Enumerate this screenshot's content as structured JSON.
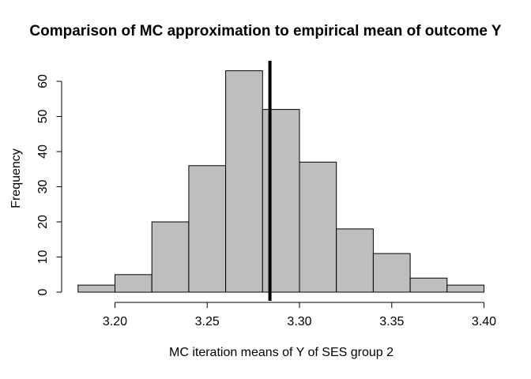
{
  "figure": {
    "background": "#FFFFFF",
    "text_color": "#000000"
  },
  "chart_data": {
    "type": "bar",
    "subtype": "histogram",
    "title": "Comparison of MC approximation to empirical mean of outcome Y",
    "xlabel": "MC iteration means of Y of SES group 2",
    "ylabel": "Frequency",
    "bin_edges": [
      3.18,
      3.2,
      3.22,
      3.24,
      3.26,
      3.28,
      3.3,
      3.32,
      3.34,
      3.36,
      3.38,
      3.4
    ],
    "counts": [
      2,
      5,
      20,
      36,
      63,
      52,
      37,
      18,
      11,
      4,
      2
    ],
    "x_ticks": [
      3.2,
      3.25,
      3.3,
      3.35,
      3.4
    ],
    "x_tick_labels": [
      "3.20",
      "3.25",
      "3.30",
      "3.35",
      "3.40"
    ],
    "y_ticks": [
      0,
      10,
      20,
      30,
      40,
      50,
      60
    ],
    "y_tick_labels": [
      "0",
      "10",
      "20",
      "30",
      "40",
      "50",
      "60"
    ],
    "xlim": [
      3.18,
      3.4
    ],
    "ylim": [
      0,
      63
    ],
    "vline_x": 3.284,
    "bar_fill": "#BEBEBE",
    "bar_border": "#000000",
    "vline_color": "#000000",
    "axis_color": "#000000",
    "grid": false,
    "legend": null
  }
}
